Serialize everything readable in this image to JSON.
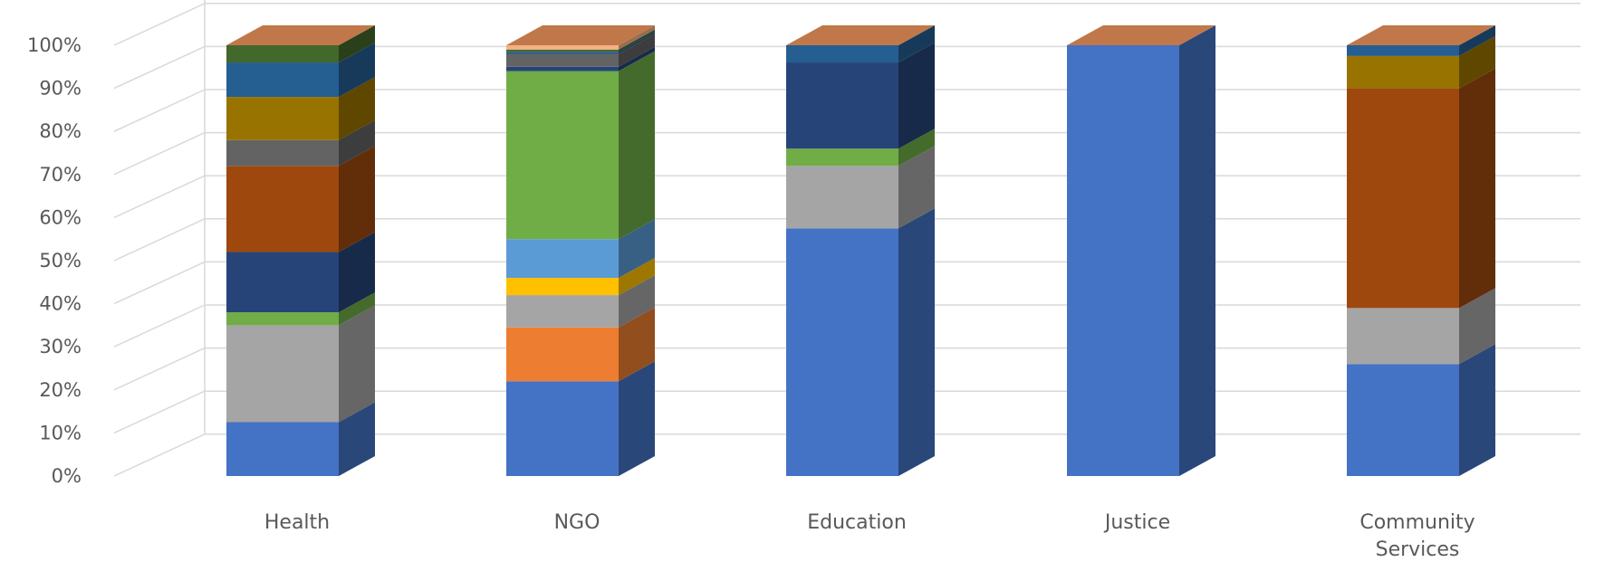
{
  "chart_data": {
    "type": "bar",
    "stacked": "percent",
    "style_3d": true,
    "title": "",
    "xlabel": "",
    "ylabel": "",
    "ylim": [
      0,
      100
    ],
    "y_ticks": [
      "0%",
      "10%",
      "20%",
      "30%",
      "40%",
      "50%",
      "60%",
      "70%",
      "80%",
      "90%",
      "100%"
    ],
    "grid": true,
    "legend": "none",
    "categories": [
      {
        "label": [
          "Health"
        ]
      },
      {
        "label": [
          "NGO"
        ]
      },
      {
        "label": [
          "Education"
        ]
      },
      {
        "label": [
          "Justice"
        ]
      },
      {
        "label": [
          "Community",
          "Services"
        ]
      }
    ],
    "series": [
      {
        "color": "#4472C4",
        "values": [
          12.5,
          22,
          57.5,
          100,
          26
        ]
      },
      {
        "color": "#ED7D31",
        "values": [
          0,
          12.5,
          0,
          0,
          0
        ]
      },
      {
        "color": "#A5A5A5",
        "values": [
          22.5,
          7.5,
          14.5,
          0,
          13
        ]
      },
      {
        "color": "#FFC000",
        "values": [
          0,
          4,
          0,
          0,
          0
        ]
      },
      {
        "color": "#5B9BD5",
        "values": [
          0,
          9,
          0,
          0,
          0
        ]
      },
      {
        "color": "#70AD47",
        "values": [
          3,
          39,
          4,
          0,
          0
        ]
      },
      {
        "color": "#264478",
        "values": [
          14,
          1,
          20,
          0,
          0
        ]
      },
      {
        "color": "#9E480E",
        "values": [
          20,
          0,
          0,
          0,
          51
        ]
      },
      {
        "color": "#636363",
        "values": [
          6,
          3,
          0,
          0,
          0
        ]
      },
      {
        "color": "#997300",
        "values": [
          10,
          0,
          0,
          0,
          7.5
        ]
      },
      {
        "color": "#255E91",
        "values": [
          8,
          0.5,
          4,
          0,
          2.5
        ]
      },
      {
        "color": "#43682B",
        "values": [
          4,
          0.5,
          0,
          0,
          0
        ]
      },
      {
        "color": "#F4B183",
        "values": [
          0,
          1,
          0,
          0,
          0
        ]
      }
    ],
    "top_face_color": "#C0784A"
  }
}
